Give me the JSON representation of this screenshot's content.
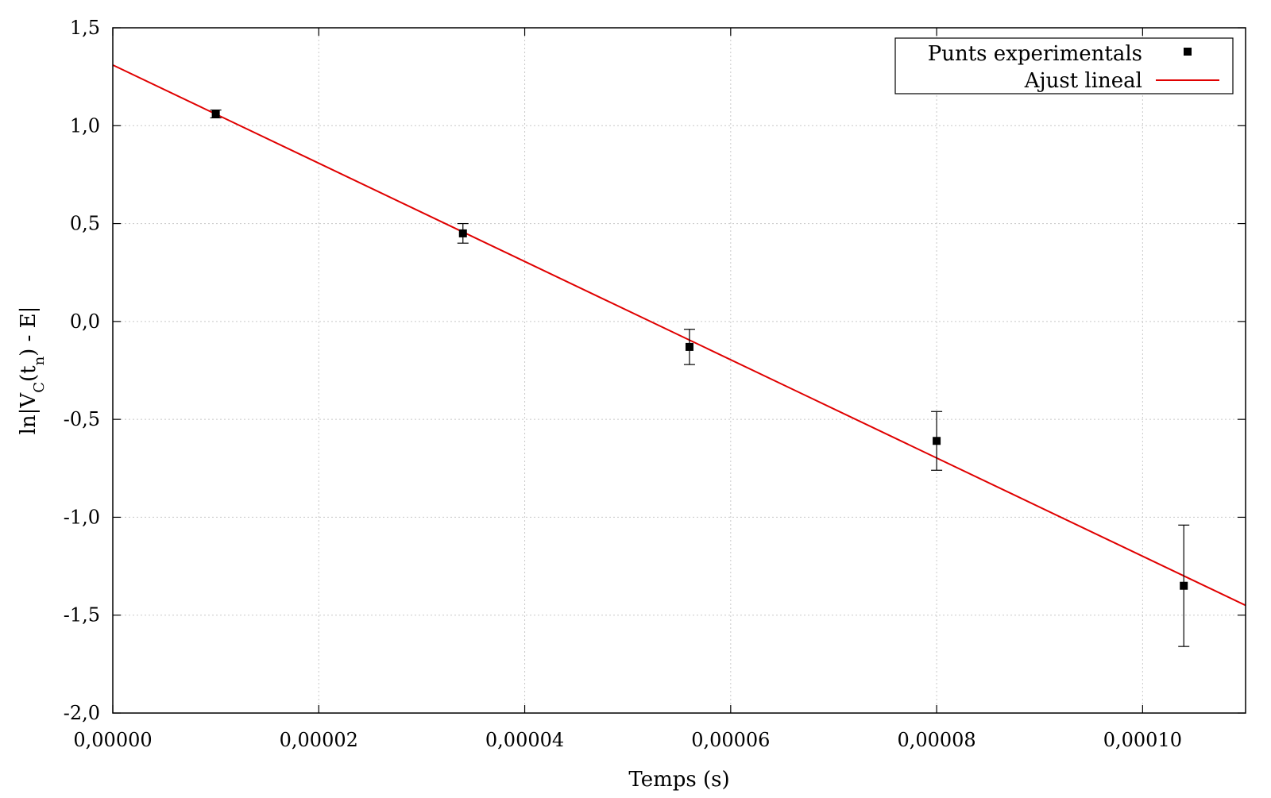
{
  "chart_data": {
    "type": "scatter",
    "xlabel": "Temps (s)",
    "ylabel": {
      "prefix": "ln|V",
      "sub1": "C",
      "mid": "(t",
      "sub2": "n",
      "suffix": ") - E|"
    },
    "xlim": [
      0,
      0.00011
    ],
    "ylim": [
      -2.0,
      1.5
    ],
    "x_ticks": [
      0,
      2e-05,
      4e-05,
      6e-05,
      8e-05,
      0.0001
    ],
    "x_tick_labels": [
      "0,00000",
      "0,00002",
      "0,00004",
      "0,00006",
      "0,00008",
      "0,00010"
    ],
    "y_ticks": [
      -2.0,
      -1.5,
      -1.0,
      -0.5,
      0.0,
      0.5,
      1.0,
      1.5
    ],
    "y_tick_labels": [
      "-2,0",
      "-1,5",
      "-1,0",
      "-0,5",
      "0,0",
      "0,5",
      "1,0",
      "1,5"
    ],
    "grid": true,
    "legend_position": "top-right",
    "series": [
      {
        "name": "Punts experimentals",
        "kind": "points",
        "color": "#000000",
        "x": [
          1e-05,
          3.4e-05,
          5.6e-05,
          8e-05,
          0.000104
        ],
        "y": [
          1.06,
          0.45,
          -0.13,
          -0.61,
          -1.35
        ],
        "y_err_low": [
          0.02,
          0.05,
          0.09,
          0.15,
          0.31
        ],
        "y_err_high": [
          0.02,
          0.05,
          0.09,
          0.15,
          0.31
        ]
      },
      {
        "name": "Ajust lineal",
        "kind": "line",
        "color": "#e00000",
        "x": [
          0,
          0.00011
        ],
        "y": [
          1.31,
          -1.45
        ]
      }
    ]
  }
}
